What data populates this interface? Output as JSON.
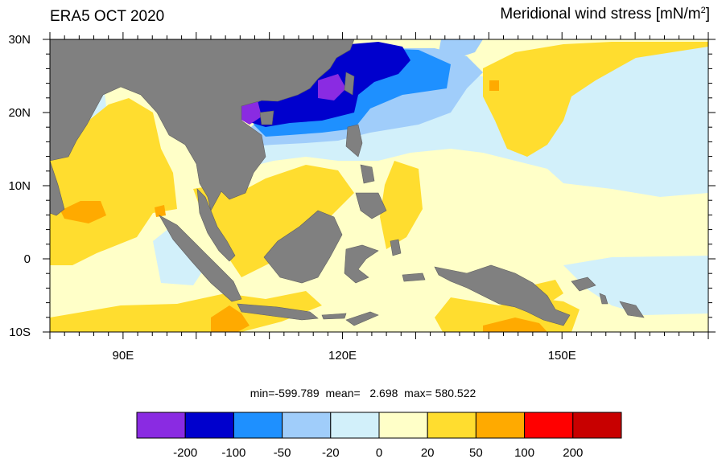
{
  "title_left": "ERA5 OCT 2020",
  "title_right": {
    "text": "Meridional wind stress [mN/m",
    "superscript": "2",
    "suffix": "]"
  },
  "map": {
    "lon_range": [
      80,
      170
    ],
    "lat_range": [
      -10,
      30
    ],
    "lat_ticks": [
      {
        "value": 30,
        "label": "30N"
      },
      {
        "value": 20,
        "label": "20N"
      },
      {
        "value": 10,
        "label": "10N"
      },
      {
        "value": 0,
        "label": "0"
      },
      {
        "value": -10,
        "label": "10S"
      }
    ],
    "lon_ticks": [
      {
        "value": 90,
        "label": "90E"
      },
      {
        "value": 120,
        "label": "120E"
      },
      {
        "value": 150,
        "label": "150E"
      }
    ],
    "land_color": "#808080"
  },
  "stats": {
    "text": "min=-599.789  mean=   2.698  max= 580.522"
  },
  "colorbar": {
    "colors": [
      "#8a2be2",
      "#0000cd",
      "#1e90ff",
      "#a0cdfa",
      "#d2f0fa",
      "#ffffc8",
      "#ffdd2f",
      "#ffaa00",
      "#ff0000",
      "#c80000"
    ],
    "labels": [
      "-200",
      "-100",
      "-50",
      "-20",
      "0",
      "20",
      "50",
      "100",
      "200"
    ]
  }
}
